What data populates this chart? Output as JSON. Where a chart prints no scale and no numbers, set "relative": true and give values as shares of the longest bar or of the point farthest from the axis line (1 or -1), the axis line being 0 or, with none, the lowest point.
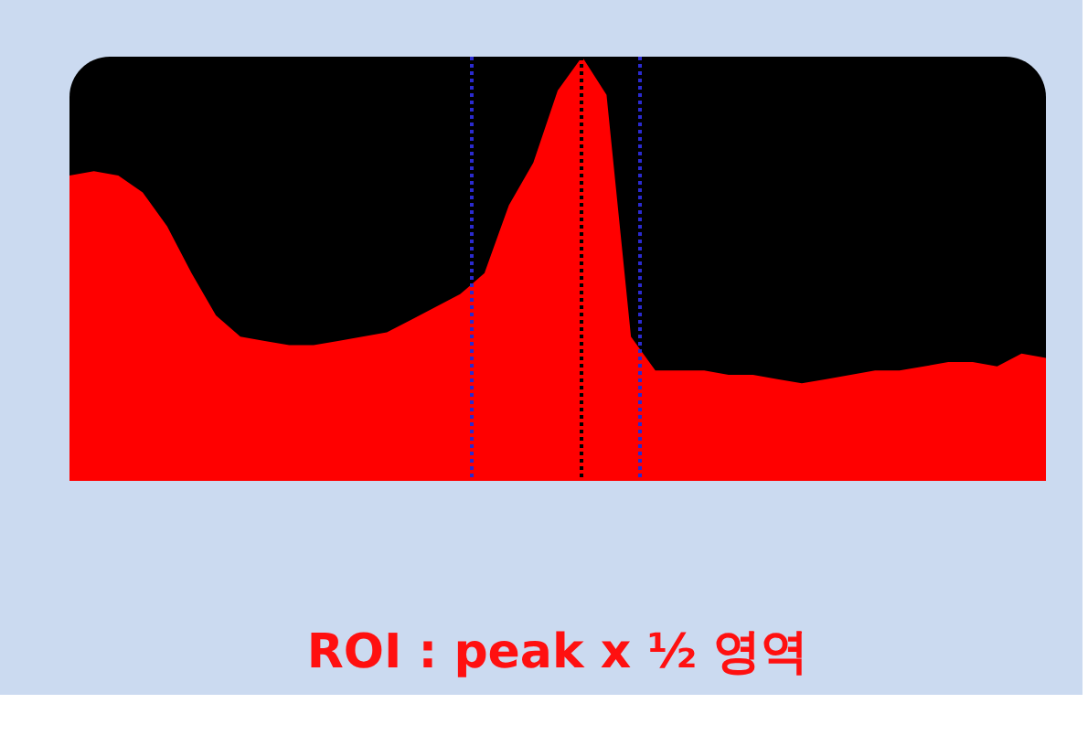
{
  "chart_data": {
    "type": "area",
    "relative": true,
    "tick_labels": false,
    "categories": [
      null,
      null,
      null,
      null,
      null,
      null,
      null,
      null,
      null,
      null,
      null,
      null,
      null,
      null,
      null,
      null,
      null,
      null,
      null,
      null,
      null,
      null,
      null,
      null,
      null,
      null,
      null,
      null,
      null,
      null,
      null,
      null,
      null,
      null,
      null,
      null,
      null,
      null,
      null,
      null,
      null
    ],
    "series": [
      {
        "color": "#ff0000",
        "values": [
          0.72,
          0.73,
          0.72,
          0.68,
          0.6,
          0.49,
          0.39,
          0.34,
          0.33,
          0.32,
          0.32,
          0.33,
          0.34,
          0.35,
          0.38,
          0.41,
          0.44,
          0.49,
          0.65,
          0.75,
          0.92,
          1.0,
          0.91,
          0.34,
          0.26,
          0.26,
          0.26,
          0.25,
          0.25,
          0.24,
          0.23,
          0.24,
          0.25,
          0.26,
          0.26,
          0.27,
          0.28,
          0.28,
          0.27,
          0.3,
          0.29
        ]
      }
    ],
    "annotations": [
      "ROI : peak x ½ 영역"
    ]
  }
}
